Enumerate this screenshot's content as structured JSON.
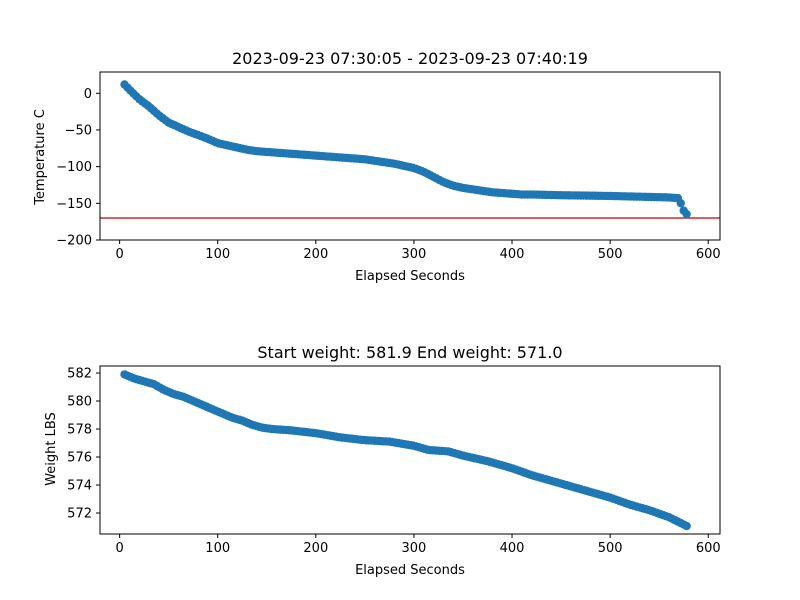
{
  "chart_data": [
    {
      "type": "scatter",
      "title": "2023-09-23 07:30:05 - 2023-09-23 07:40:19",
      "xlabel": "Elapsed Seconds",
      "ylabel": "Temperature C",
      "xlim": [
        -20,
        612
      ],
      "ylim": [
        -200,
        29
      ],
      "xticks": [
        0,
        100,
        200,
        300,
        400,
        500,
        600
      ],
      "yticks": [
        0,
        -50,
        -100,
        -150,
        -200
      ],
      "grid": false,
      "marker_color": "#1f77b4",
      "hline": {
        "y": -170,
        "color": "#d62728"
      },
      "anchors": [
        [
          5,
          12
        ],
        [
          10,
          5
        ],
        [
          20,
          -8
        ],
        [
          30,
          -18
        ],
        [
          40,
          -30
        ],
        [
          50,
          -40
        ],
        [
          60,
          -46
        ],
        [
          70,
          -52
        ],
        [
          80,
          -57
        ],
        [
          90,
          -62
        ],
        [
          100,
          -68
        ],
        [
          110,
          -71
        ],
        [
          120,
          -74
        ],
        [
          130,
          -77
        ],
        [
          140,
          -79
        ],
        [
          150,
          -80
        ],
        [
          160,
          -81
        ],
        [
          170,
          -82
        ],
        [
          180,
          -83
        ],
        [
          190,
          -84
        ],
        [
          200,
          -85
        ],
        [
          210,
          -86
        ],
        [
          220,
          -87
        ],
        [
          230,
          -88
        ],
        [
          240,
          -89
        ],
        [
          250,
          -90
        ],
        [
          260,
          -92
        ],
        [
          270,
          -94
        ],
        [
          280,
          -96
        ],
        [
          290,
          -99
        ],
        [
          300,
          -102
        ],
        [
          310,
          -107
        ],
        [
          320,
          -114
        ],
        [
          330,
          -121
        ],
        [
          340,
          -126
        ],
        [
          350,
          -129
        ],
        [
          360,
          -131
        ],
        [
          370,
          -133
        ],
        [
          380,
          -135
        ],
        [
          390,
          -136
        ],
        [
          400,
          -137
        ],
        [
          410,
          -138
        ],
        [
          420,
          -138
        ],
        [
          450,
          -139
        ],
        [
          500,
          -140
        ],
        [
          530,
          -141
        ],
        [
          560,
          -142
        ],
        [
          570,
          -143
        ],
        [
          575,
          -160
        ],
        [
          580,
          -168
        ]
      ]
    },
    {
      "type": "scatter",
      "title": "Start weight: 581.9 End weight: 571.0",
      "xlabel": "Elapsed Seconds",
      "ylabel": "Weight LBS",
      "xlim": [
        -20,
        612
      ],
      "ylim": [
        570.5,
        582.5
      ],
      "xticks": [
        0,
        100,
        200,
        300,
        400,
        500,
        600
      ],
      "yticks": [
        572,
        574,
        576,
        578,
        580,
        582
      ],
      "grid": false,
      "marker_color": "#1f77b4",
      "anchors": [
        [
          5,
          581.9
        ],
        [
          15,
          581.6
        ],
        [
          25,
          581.4
        ],
        [
          35,
          581.2
        ],
        [
          45,
          580.8
        ],
        [
          55,
          580.5
        ],
        [
          65,
          580.3
        ],
        [
          75,
          580.0
        ],
        [
          85,
          579.7
        ],
        [
          95,
          579.4
        ],
        [
          105,
          579.1
        ],
        [
          115,
          578.8
        ],
        [
          125,
          578.6
        ],
        [
          135,
          578.3
        ],
        [
          145,
          578.1
        ],
        [
          155,
          578.0
        ],
        [
          175,
          577.9
        ],
        [
          200,
          577.7
        ],
        [
          225,
          577.4
        ],
        [
          250,
          577.2
        ],
        [
          275,
          577.1
        ],
        [
          300,
          576.8
        ],
        [
          315,
          576.5
        ],
        [
          335,
          576.4
        ],
        [
          350,
          576.1
        ],
        [
          375,
          575.7
        ],
        [
          400,
          575.2
        ],
        [
          420,
          574.7
        ],
        [
          440,
          574.3
        ],
        [
          460,
          573.9
        ],
        [
          480,
          573.5
        ],
        [
          500,
          573.1
        ],
        [
          520,
          572.6
        ],
        [
          540,
          572.2
        ],
        [
          560,
          571.7
        ],
        [
          580,
          571.0
        ]
      ]
    }
  ]
}
